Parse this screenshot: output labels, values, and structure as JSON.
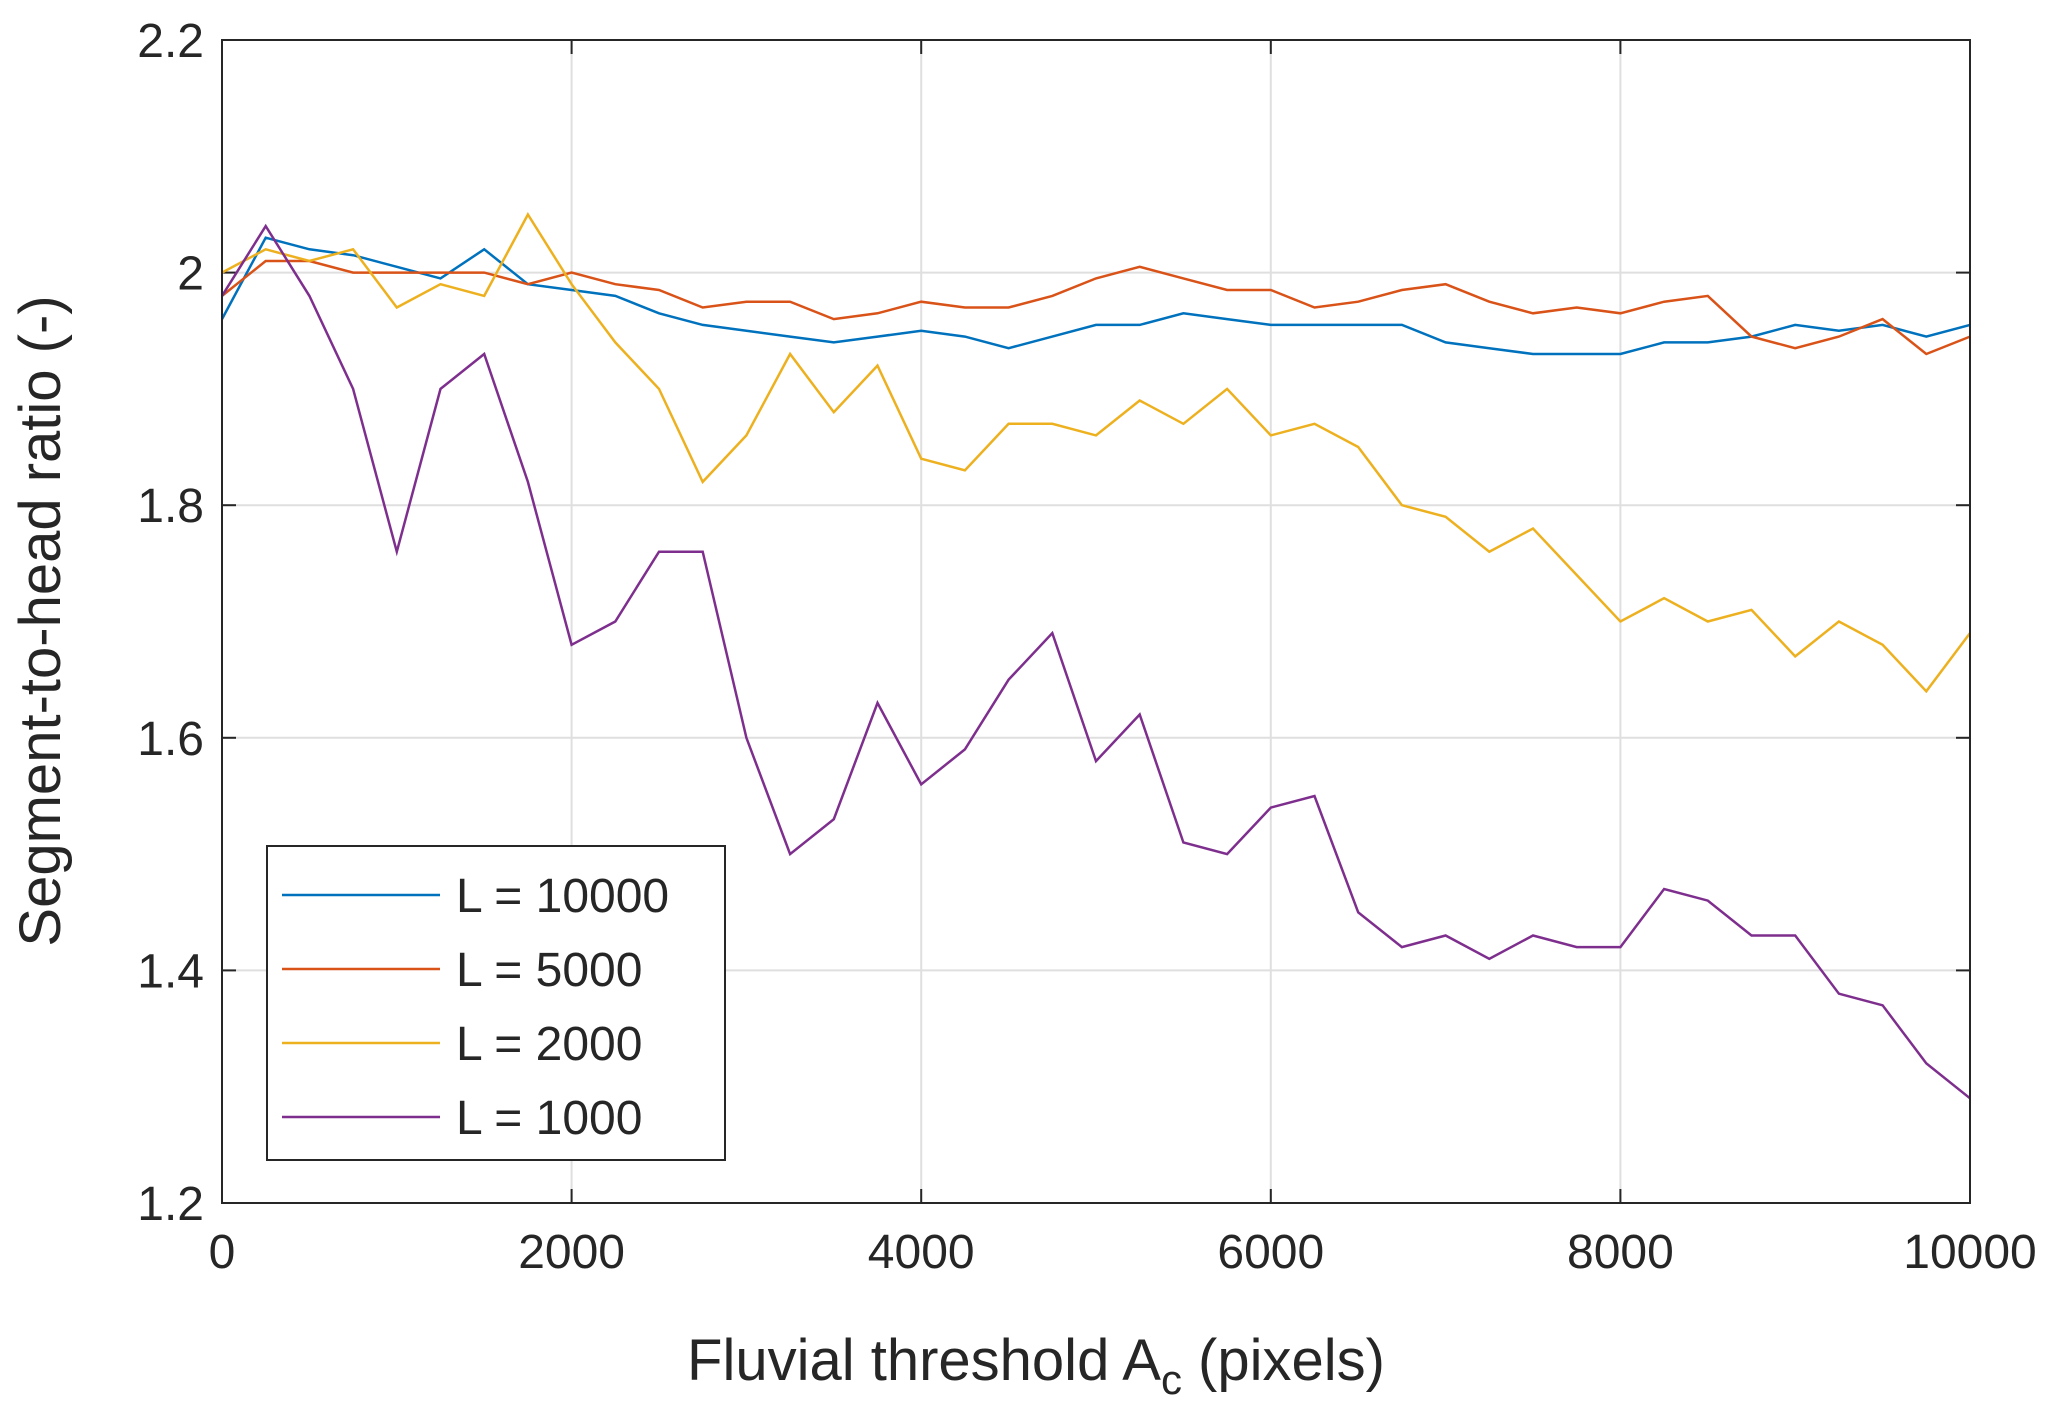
{
  "chart_data": {
    "type": "line",
    "x_label": {
      "main": "Fluvial threshold A",
      "subscript": "c",
      "suffix": " (pixels)"
    },
    "y_label": "Segment-to-head ratio (-)",
    "x": [
      0,
      250,
      500,
      750,
      1000,
      1250,
      1500,
      1750,
      2000,
      2250,
      2500,
      2750,
      3000,
      3250,
      3500,
      3750,
      4000,
      4250,
      4500,
      4750,
      5000,
      5250,
      5500,
      5750,
      6000,
      6250,
      6500,
      6750,
      7000,
      7250,
      7500,
      7750,
      8000,
      8250,
      8500,
      8750,
      9000,
      9250,
      9500,
      9750,
      10000
    ],
    "series": [
      {
        "name": "L = 10000",
        "color": "#0072bd",
        "values": [
          1.96,
          2.03,
          2.02,
          2.015,
          2.005,
          1.995,
          2.02,
          1.99,
          1.985,
          1.98,
          1.965,
          1.955,
          1.95,
          1.945,
          1.94,
          1.945,
          1.95,
          1.945,
          1.935,
          1.945,
          1.955,
          1.955,
          1.965,
          1.96,
          1.955,
          1.955,
          1.955,
          1.955,
          1.94,
          1.935,
          1.93,
          1.93,
          1.93,
          1.94,
          1.94,
          1.945,
          1.955,
          1.95,
          1.955,
          1.945,
          1.955
        ]
      },
      {
        "name": "L = 5000",
        "color": "#d95319",
        "values": [
          1.98,
          2.01,
          2.01,
          2.0,
          2.0,
          2.0,
          2.0,
          1.99,
          2.0,
          1.99,
          1.985,
          1.97,
          1.975,
          1.975,
          1.96,
          1.965,
          1.975,
          1.97,
          1.97,
          1.98,
          1.995,
          2.005,
          1.995,
          1.985,
          1.985,
          1.97,
          1.975,
          1.985,
          1.99,
          1.975,
          1.965,
          1.97,
          1.965,
          1.975,
          1.98,
          1.945,
          1.935,
          1.945,
          1.96,
          1.93,
          1.945
        ]
      },
      {
        "name": "L = 2000",
        "color": "#edb120",
        "values": [
          2.0,
          2.02,
          2.01,
          2.02,
          1.97,
          1.99,
          1.98,
          2.05,
          1.99,
          1.94,
          1.9,
          1.82,
          1.86,
          1.93,
          1.88,
          1.92,
          1.84,
          1.83,
          1.87,
          1.87,
          1.86,
          1.89,
          1.87,
          1.9,
          1.86,
          1.87,
          1.85,
          1.8,
          1.79,
          1.76,
          1.78,
          1.74,
          1.7,
          1.72,
          1.7,
          1.71,
          1.67,
          1.7,
          1.68,
          1.64,
          1.69
        ]
      },
      {
        "name": "L = 1000",
        "color": "#7e2f8e",
        "values": [
          1.98,
          2.04,
          1.98,
          1.9,
          1.76,
          1.9,
          1.93,
          1.82,
          1.68,
          1.7,
          1.76,
          1.76,
          1.6,
          1.5,
          1.53,
          1.63,
          1.56,
          1.59,
          1.65,
          1.69,
          1.58,
          1.62,
          1.51,
          1.5,
          1.54,
          1.55,
          1.45,
          1.42,
          1.43,
          1.41,
          1.43,
          1.42,
          1.42,
          1.47,
          1.46,
          1.43,
          1.43,
          1.38,
          1.37,
          1.32,
          1.29
        ]
      }
    ],
    "xlim": [
      0,
      10000
    ],
    "xticks": [
      0,
      2000,
      4000,
      6000,
      8000,
      10000
    ],
    "ylim": [
      1.2,
      2.2
    ],
    "yticks": [
      1.2,
      1.4,
      1.6,
      1.8,
      2,
      2.2
    ],
    "grid": true,
    "legend": "lower-left"
  }
}
